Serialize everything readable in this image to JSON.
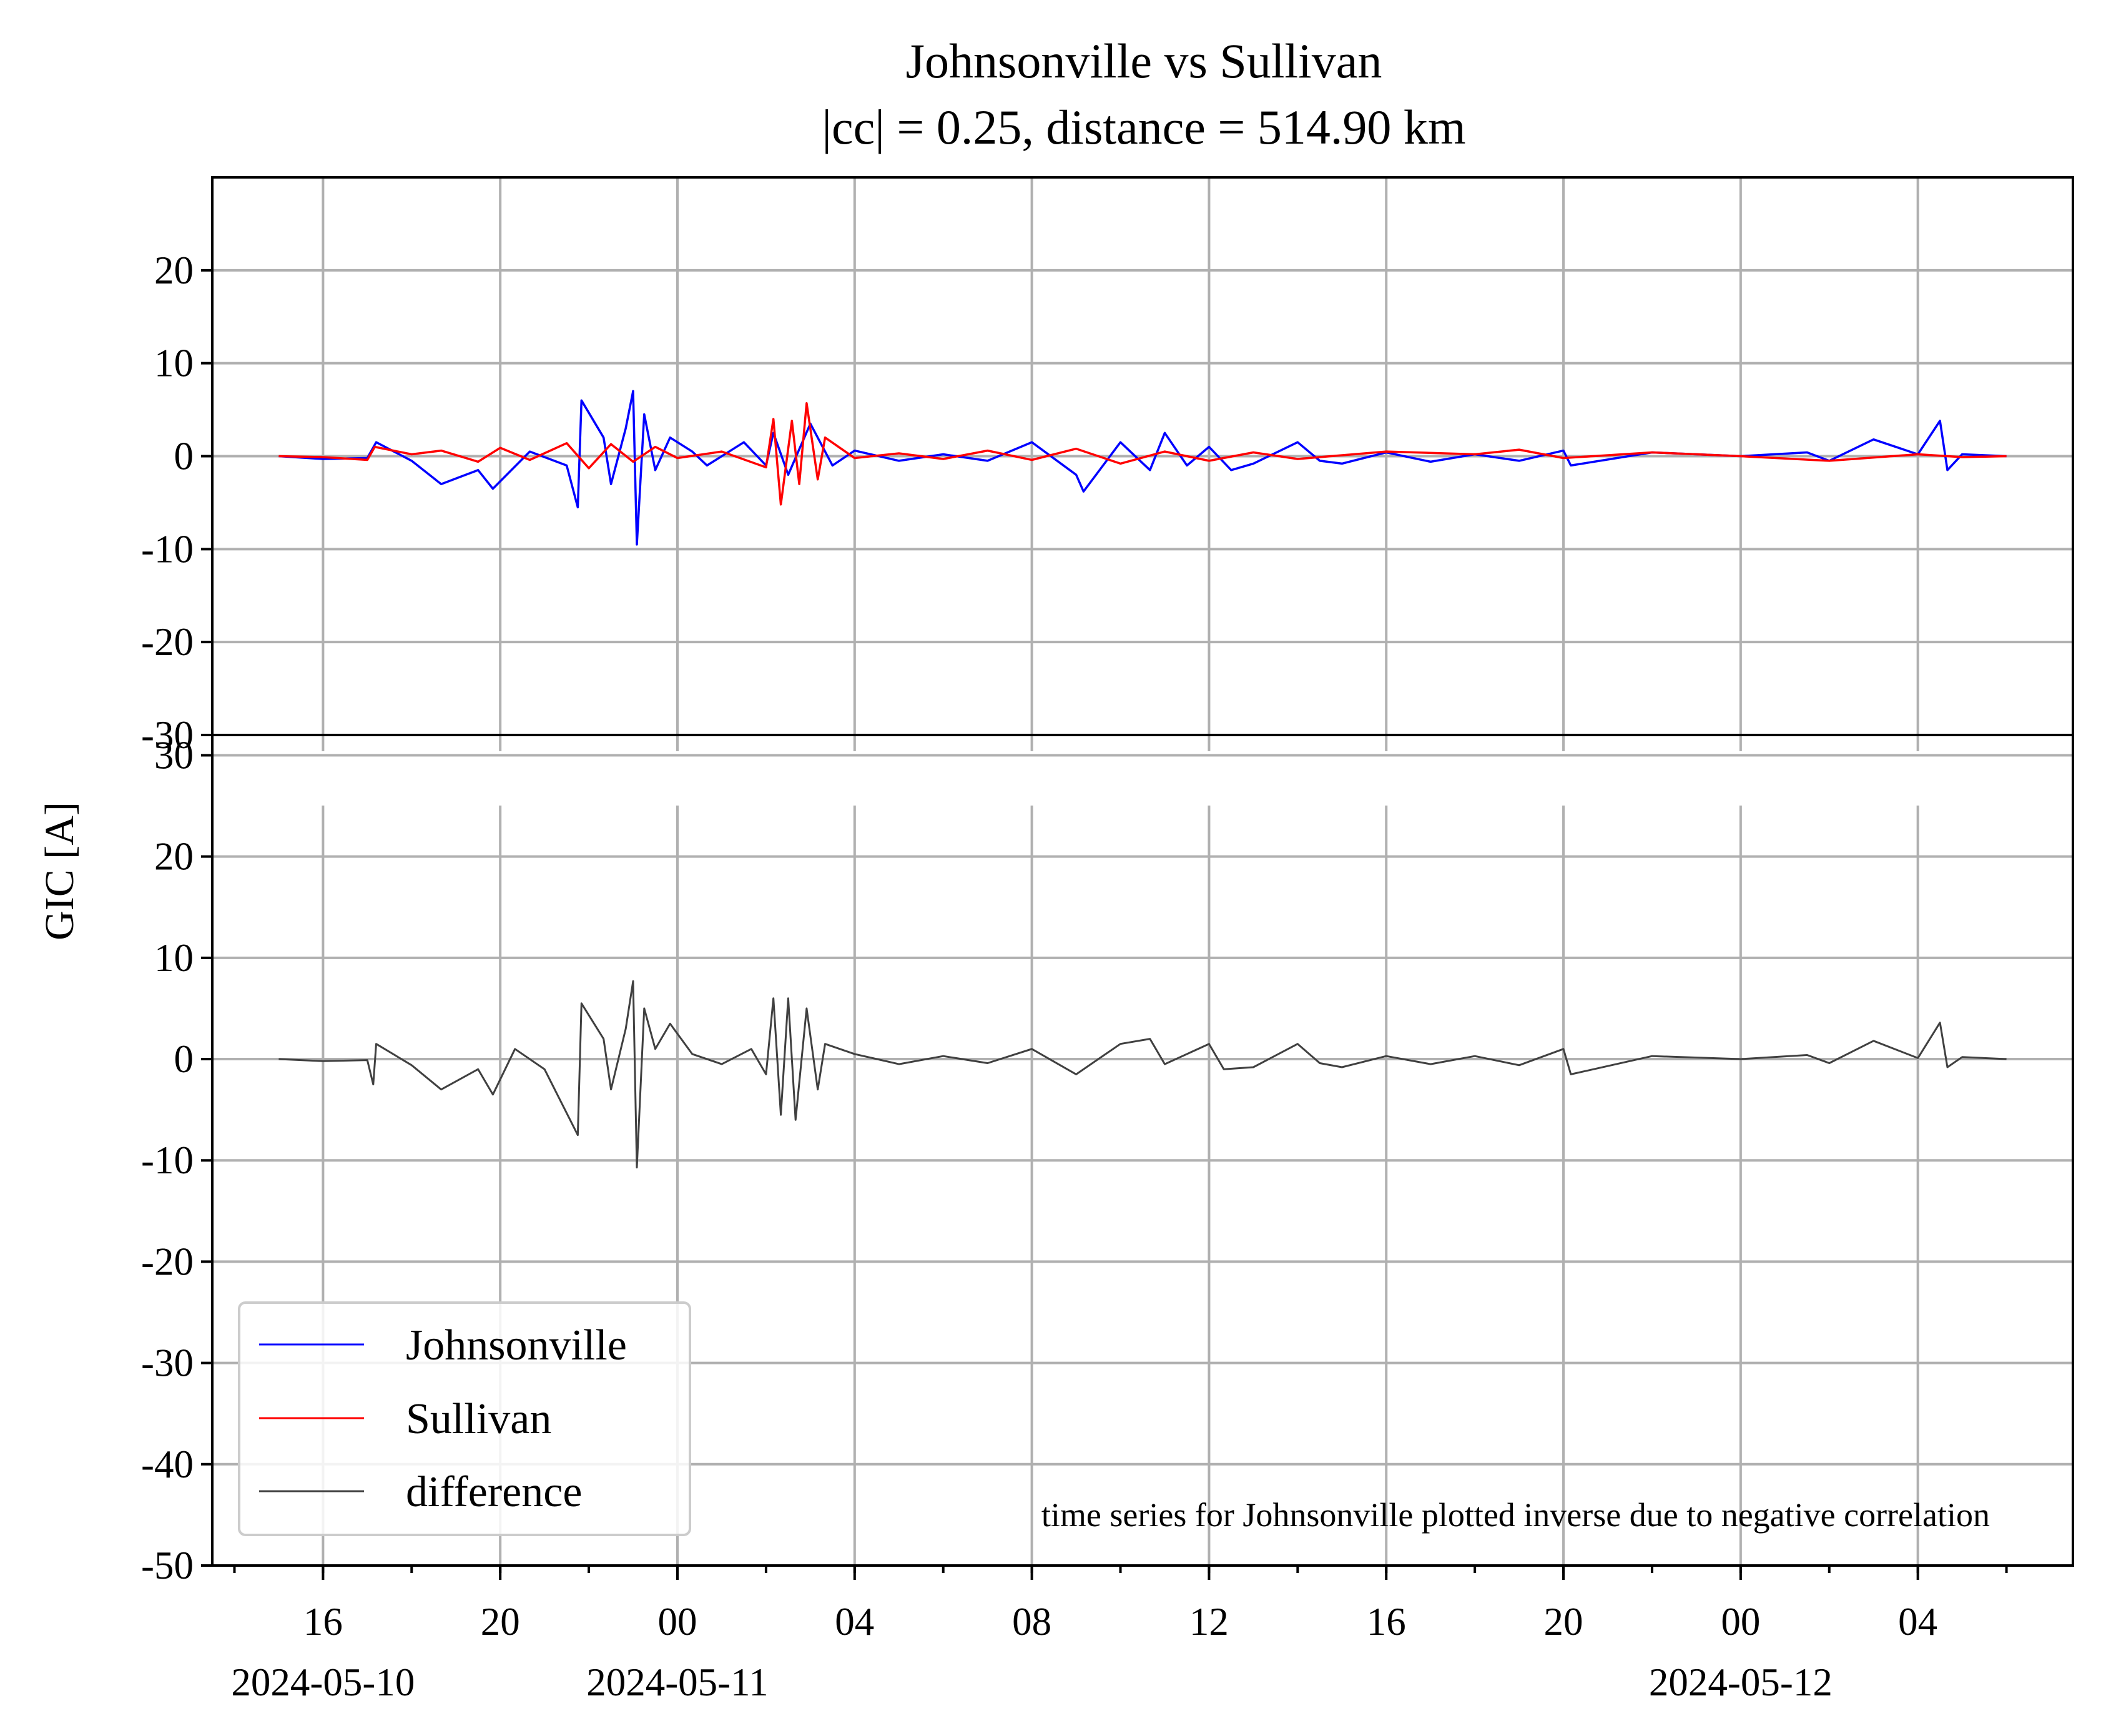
{
  "chart_data": {
    "type": "line",
    "title": "Johnsonville vs Sullivan",
    "subtitle": "|cc| = 0.25, distance = 514.90 km",
    "ylabel": "GIC [A]",
    "xlabel": "",
    "annotation": "time series for Johnsonville plotted inverse due to negative correlation",
    "x_range": [
      "2024-05-10T13:30",
      "2024-05-12T07:30"
    ],
    "x_data_range": [
      "2024-05-10T15:00",
      "2024-05-12T06:00"
    ],
    "x_ticks": [
      {
        "time": "2024-05-10T16:00",
        "label": "16",
        "date": "2024-05-10"
      },
      {
        "time": "2024-05-10T20:00",
        "label": "20",
        "date": ""
      },
      {
        "time": "2024-05-11T00:00",
        "label": "00",
        "date": "2024-05-11"
      },
      {
        "time": "2024-05-11T04:00",
        "label": "04",
        "date": ""
      },
      {
        "time": "2024-05-11T08:00",
        "label": "08",
        "date": ""
      },
      {
        "time": "2024-05-11T12:00",
        "label": "12",
        "date": ""
      },
      {
        "time": "2024-05-11T16:00",
        "label": "16",
        "date": ""
      },
      {
        "time": "2024-05-11T20:00",
        "label": "20",
        "date": ""
      },
      {
        "time": "2024-05-12T00:00",
        "label": "00",
        "date": "2024-05-12"
      },
      {
        "time": "2024-05-12T04:00",
        "label": "04",
        "date": ""
      }
    ],
    "grid": true,
    "legend": {
      "placement": "lower-left",
      "panel": "bottom"
    },
    "panels": [
      {
        "id": "top",
        "ylim": [
          -30,
          30
        ],
        "yticks": [
          -30,
          -20,
          -10,
          0,
          10,
          20
        ],
        "ytick_labels": [
          "-30",
          "-20",
          "-10",
          "0",
          "10",
          "20"
        ],
        "series": [
          {
            "name": "Johnsonville",
            "color": "#0000ff",
            "points": [
              [
                "2024-05-10T15:00",
                0.0
              ],
              [
                "2024-05-10T16:00",
                -0.3
              ],
              [
                "2024-05-10T17:00",
                -0.2
              ],
              [
                "2024-05-10T17:12",
                1.5
              ],
              [
                "2024-05-10T18:00",
                -0.5
              ],
              [
                "2024-05-10T18:40",
                -3.0
              ],
              [
                "2024-05-10T19:30",
                -1.5
              ],
              [
                "2024-05-10T19:50",
                -3.5
              ],
              [
                "2024-05-10T20:40",
                0.5
              ],
              [
                "2024-05-10T21:30",
                -1.0
              ],
              [
                "2024-05-10T21:45",
                -5.5
              ],
              [
                "2024-05-10T21:50",
                6.0
              ],
              [
                "2024-05-10T22:20",
                2.0
              ],
              [
                "2024-05-10T22:30",
                -3.0
              ],
              [
                "2024-05-10T22:50",
                3.0
              ],
              [
                "2024-05-10T23:00",
                7.0
              ],
              [
                "2024-05-10T23:05",
                -9.5
              ],
              [
                "2024-05-10T23:15",
                4.5
              ],
              [
                "2024-05-10T23:30",
                -1.5
              ],
              [
                "2024-05-10T23:50",
                2.0
              ],
              [
                "2024-05-11T00:20",
                0.5
              ],
              [
                "2024-05-11T00:40",
                -1.0
              ],
              [
                "2024-05-11T01:30",
                1.5
              ],
              [
                "2024-05-11T02:00",
                -1.0
              ],
              [
                "2024-05-11T02:10",
                2.5
              ],
              [
                "2024-05-11T02:30",
                -2.0
              ],
              [
                "2024-05-11T03:00",
                3.5
              ],
              [
                "2024-05-11T03:30",
                -1.0
              ],
              [
                "2024-05-11T04:00",
                0.6
              ],
              [
                "2024-05-11T05:00",
                -0.5
              ],
              [
                "2024-05-11T06:00",
                0.2
              ],
              [
                "2024-05-11T07:00",
                -0.5
              ],
              [
                "2024-05-11T08:00",
                1.5
              ],
              [
                "2024-05-11T09:00",
                -2.0
              ],
              [
                "2024-05-11T09:10",
                -3.8
              ],
              [
                "2024-05-11T10:00",
                1.5
              ],
              [
                "2024-05-11T10:40",
                -1.5
              ],
              [
                "2024-05-11T11:00",
                2.5
              ],
              [
                "2024-05-11T11:30",
                -1.0
              ],
              [
                "2024-05-11T12:00",
                1.0
              ],
              [
                "2024-05-11T12:30",
                -1.5
              ],
              [
                "2024-05-11T13:00",
                -0.8
              ],
              [
                "2024-05-11T14:00",
                1.5
              ],
              [
                "2024-05-11T14:30",
                -0.5
              ],
              [
                "2024-05-11T15:00",
                -0.8
              ],
              [
                "2024-05-11T16:00",
                0.4
              ],
              [
                "2024-05-11T17:00",
                -0.6
              ],
              [
                "2024-05-11T18:00",
                0.2
              ],
              [
                "2024-05-11T19:00",
                -0.5
              ],
              [
                "2024-05-11T20:00",
                0.6
              ],
              [
                "2024-05-11T20:10",
                -1.0
              ],
              [
                "2024-05-11T22:00",
                0.4
              ],
              [
                "2024-05-12T00:00",
                0.0
              ],
              [
                "2024-05-12T01:30",
                0.4
              ],
              [
                "2024-05-12T02:00",
                -0.5
              ],
              [
                "2024-05-12T03:00",
                1.8
              ],
              [
                "2024-05-12T04:00",
                0.2
              ],
              [
                "2024-05-12T04:30",
                3.8
              ],
              [
                "2024-05-12T04:40",
                -1.5
              ],
              [
                "2024-05-12T05:00",
                0.2
              ],
              [
                "2024-05-12T06:00",
                0.0
              ]
            ]
          },
          {
            "name": "Sullivan",
            "color": "#ff0000",
            "points": [
              [
                "2024-05-10T15:00",
                0.0
              ],
              [
                "2024-05-10T16:00",
                -0.1
              ],
              [
                "2024-05-10T17:00",
                -0.4
              ],
              [
                "2024-05-10T17:10",
                1.0
              ],
              [
                "2024-05-10T18:00",
                0.2
              ],
              [
                "2024-05-10T18:40",
                0.6
              ],
              [
                "2024-05-10T19:30",
                -0.6
              ],
              [
                "2024-05-10T20:00",
                0.9
              ],
              [
                "2024-05-10T20:40",
                -0.4
              ],
              [
                "2024-05-10T21:30",
                1.4
              ],
              [
                "2024-05-10T22:00",
                -1.3
              ],
              [
                "2024-05-10T22:30",
                1.3
              ],
              [
                "2024-05-10T23:00",
                -0.6
              ],
              [
                "2024-05-10T23:30",
                1.0
              ],
              [
                "2024-05-11T00:00",
                -0.2
              ],
              [
                "2024-05-11T01:00",
                0.5
              ],
              [
                "2024-05-11T02:00",
                -1.2
              ],
              [
                "2024-05-11T02:10",
                4.0
              ],
              [
                "2024-05-11T02:20",
                -5.2
              ],
              [
                "2024-05-11T02:35",
                3.8
              ],
              [
                "2024-05-11T02:45",
                -3.0
              ],
              [
                "2024-05-11T02:55",
                5.7
              ],
              [
                "2024-05-11T03:10",
                -2.5
              ],
              [
                "2024-05-11T03:20",
                2.0
              ],
              [
                "2024-05-11T04:00",
                -0.2
              ],
              [
                "2024-05-11T05:00",
                0.3
              ],
              [
                "2024-05-11T06:00",
                -0.3
              ],
              [
                "2024-05-11T07:00",
                0.6
              ],
              [
                "2024-05-11T08:00",
                -0.4
              ],
              [
                "2024-05-11T09:00",
                0.8
              ],
              [
                "2024-05-11T10:00",
                -0.8
              ],
              [
                "2024-05-11T11:00",
                0.5
              ],
              [
                "2024-05-11T12:00",
                -0.5
              ],
              [
                "2024-05-11T13:00",
                0.4
              ],
              [
                "2024-05-11T14:00",
                -0.3
              ],
              [
                "2024-05-11T16:00",
                0.5
              ],
              [
                "2024-05-11T18:00",
                0.2
              ],
              [
                "2024-05-11T19:00",
                0.7
              ],
              [
                "2024-05-11T20:00",
                -0.2
              ],
              [
                "2024-05-11T22:00",
                0.4
              ],
              [
                "2024-05-12T00:00",
                0.0
              ],
              [
                "2024-05-12T02:00",
                -0.5
              ],
              [
                "2024-05-12T04:00",
                0.2
              ],
              [
                "2024-05-12T05:00",
                -0.1
              ],
              [
                "2024-05-12T06:00",
                0.0
              ]
            ]
          }
        ]
      },
      {
        "id": "bottom",
        "ylim": [
          -50,
          32
        ],
        "yticks": [
          -50,
          -40,
          -30,
          -20,
          -10,
          0,
          10,
          20,
          30
        ],
        "ytick_labels": [
          "-50",
          "-40",
          "-30",
          "-20",
          "-10",
          "0",
          "10",
          "20",
          "30"
        ],
        "series": [
          {
            "name": "difference",
            "color": "#404040",
            "points": [
              [
                "2024-05-10T15:00",
                0.0
              ],
              [
                "2024-05-10T16:00",
                -0.2
              ],
              [
                "2024-05-10T17:00",
                -0.1
              ],
              [
                "2024-05-10T17:08",
                -2.5
              ],
              [
                "2024-05-10T17:12",
                1.5
              ],
              [
                "2024-05-10T18:00",
                -0.6
              ],
              [
                "2024-05-10T18:40",
                -3.0
              ],
              [
                "2024-05-10T19:30",
                -1.0
              ],
              [
                "2024-05-10T19:50",
                -3.5
              ],
              [
                "2024-05-10T20:20",
                1.0
              ],
              [
                "2024-05-10T21:00",
                -1.0
              ],
              [
                "2024-05-10T21:45",
                -7.5
              ],
              [
                "2024-05-10T21:50",
                5.5
              ],
              [
                "2024-05-10T22:20",
                2.0
              ],
              [
                "2024-05-10T22:30",
                -3.0
              ],
              [
                "2024-05-10T22:50",
                3.0
              ],
              [
                "2024-05-10T23:00",
                7.7
              ],
              [
                "2024-05-10T23:05",
                -10.7
              ],
              [
                "2024-05-10T23:15",
                5.0
              ],
              [
                "2024-05-10T23:30",
                1.0
              ],
              [
                "2024-05-10T23:50",
                3.5
              ],
              [
                "2024-05-11T00:20",
                0.5
              ],
              [
                "2024-05-11T01:00",
                -0.5
              ],
              [
                "2024-05-11T01:40",
                1.0
              ],
              [
                "2024-05-11T02:00",
                -1.5
              ],
              [
                "2024-05-11T02:10",
                6.0
              ],
              [
                "2024-05-11T02:20",
                -5.5
              ],
              [
                "2024-05-11T02:30",
                6.0
              ],
              [
                "2024-05-11T02:40",
                -6.0
              ],
              [
                "2024-05-11T02:55",
                5.0
              ],
              [
                "2024-05-11T03:10",
                -3.0
              ],
              [
                "2024-05-11T03:20",
                1.5
              ],
              [
                "2024-05-11T04:00",
                0.5
              ],
              [
                "2024-05-11T05:00",
                -0.5
              ],
              [
                "2024-05-11T06:00",
                0.3
              ],
              [
                "2024-05-11T07:00",
                -0.4
              ],
              [
                "2024-05-11T08:00",
                1.0
              ],
              [
                "2024-05-11T09:00",
                -1.5
              ],
              [
                "2024-05-11T10:00",
                1.5
              ],
              [
                "2024-05-11T10:40",
                2.0
              ],
              [
                "2024-05-11T11:00",
                -0.5
              ],
              [
                "2024-05-11T12:00",
                1.5
              ],
              [
                "2024-05-11T12:20",
                -1.0
              ],
              [
                "2024-05-11T13:00",
                -0.8
              ],
              [
                "2024-05-11T14:00",
                1.5
              ],
              [
                "2024-05-11T14:30",
                -0.4
              ],
              [
                "2024-05-11T15:00",
                -0.8
              ],
              [
                "2024-05-11T16:00",
                0.3
              ],
              [
                "2024-05-11T17:00",
                -0.5
              ],
              [
                "2024-05-11T18:00",
                0.3
              ],
              [
                "2024-05-11T19:00",
                -0.6
              ],
              [
                "2024-05-11T20:00",
                1.0
              ],
              [
                "2024-05-11T20:10",
                -1.5
              ],
              [
                "2024-05-11T22:00",
                0.3
              ],
              [
                "2024-05-12T00:00",
                0.0
              ],
              [
                "2024-05-12T01:30",
                0.4
              ],
              [
                "2024-05-12T02:00",
                -0.4
              ],
              [
                "2024-05-12T03:00",
                1.8
              ],
              [
                "2024-05-12T04:00",
                0.1
              ],
              [
                "2024-05-12T04:30",
                3.6
              ],
              [
                "2024-05-12T04:40",
                -0.8
              ],
              [
                "2024-05-12T05:00",
                0.2
              ],
              [
                "2024-05-12T06:00",
                0.0
              ]
            ]
          }
        ]
      }
    ]
  }
}
